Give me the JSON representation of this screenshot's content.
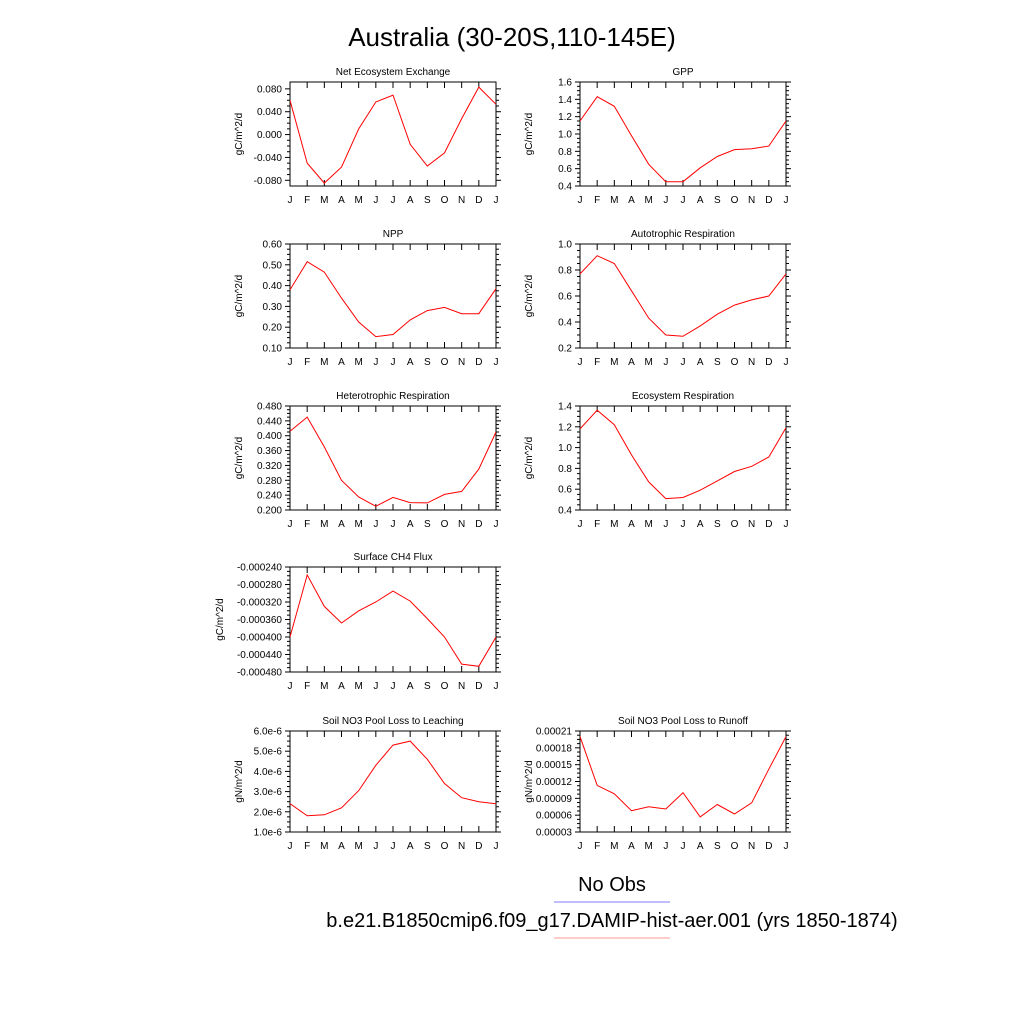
{
  "page": {
    "title": "Australia (30-20S,110-145E)",
    "legend": [
      {
        "label": "No Obs",
        "color": "#7b7bff"
      },
      {
        "label": "b.e21.B1850cmip6.f09_g17.DAMIP-hist-aer.001 (yrs 1850-1874)",
        "color": "#ff9999"
      }
    ],
    "line_color": "#ff0000"
  },
  "chart_data": [
    {
      "type": "line",
      "title": "Net Ecosystem Exchange",
      "ylabel": "gC/m^2/d",
      "x": [
        "J",
        "F",
        "M",
        "A",
        "M",
        "J",
        "J",
        "A",
        "S",
        "O",
        "N",
        "D",
        "J"
      ],
      "ylim": [
        -0.09,
        0.092
      ],
      "yticks": [
        -0.08,
        -0.04,
        0.0,
        0.04,
        0.08
      ],
      "ytick_labels": [
        "-0.080",
        "-0.040",
        "0.000",
        "0.040",
        "0.080"
      ],
      "series": [
        {
          "values": [
            0.06,
            -0.05,
            -0.085,
            -0.057,
            0.01,
            0.057,
            0.069,
            -0.017,
            -0.055,
            -0.032,
            0.028,
            0.083,
            0.053
          ]
        }
      ]
    },
    {
      "type": "line",
      "title": "GPP",
      "ylabel": "gC/m^2/d",
      "x": [
        "J",
        "F",
        "M",
        "A",
        "M",
        "J",
        "J",
        "A",
        "S",
        "O",
        "N",
        "D",
        "J"
      ],
      "ylim": [
        0.4,
        1.6
      ],
      "yticks": [
        0.4,
        0.6,
        0.8,
        1.0,
        1.2,
        1.4,
        1.6
      ],
      "ytick_labels": [
        "0.4",
        "0.6",
        "0.8",
        "1.0",
        "1.2",
        "1.4",
        "1.6"
      ],
      "series": [
        {
          "values": [
            1.15,
            1.43,
            1.32,
            0.98,
            0.65,
            0.45,
            0.45,
            0.61,
            0.74,
            0.82,
            0.83,
            0.86,
            1.15
          ]
        }
      ]
    },
    {
      "type": "line",
      "title": "NPP",
      "ylabel": "gC/m^2/d",
      "x": [
        "J",
        "F",
        "M",
        "A",
        "M",
        "J",
        "J",
        "A",
        "S",
        "O",
        "N",
        "D",
        "J"
      ],
      "ylim": [
        0.1,
        0.6
      ],
      "yticks": [
        0.1,
        0.2,
        0.3,
        0.4,
        0.5,
        0.6
      ],
      "ytick_labels": [
        "0.10",
        "0.20",
        "0.30",
        "0.40",
        "0.50",
        "0.60"
      ],
      "series": [
        {
          "values": [
            0.38,
            0.515,
            0.465,
            0.34,
            0.225,
            0.155,
            0.165,
            0.235,
            0.28,
            0.295,
            0.265,
            0.265,
            0.385
          ]
        }
      ]
    },
    {
      "type": "line",
      "title": "Autotrophic Respiration",
      "ylabel": "gC/m^2/d",
      "x": [
        "J",
        "F",
        "M",
        "A",
        "M",
        "J",
        "J",
        "A",
        "S",
        "O",
        "N",
        "D",
        "J"
      ],
      "ylim": [
        0.2,
        1.0
      ],
      "yticks": [
        0.2,
        0.4,
        0.6,
        0.8,
        1.0
      ],
      "ytick_labels": [
        "0.2",
        "0.4",
        "0.6",
        "0.8",
        "1.0"
      ],
      "series": [
        {
          "values": [
            0.77,
            0.91,
            0.85,
            0.64,
            0.43,
            0.3,
            0.29,
            0.37,
            0.46,
            0.53,
            0.57,
            0.6,
            0.77
          ]
        }
      ]
    },
    {
      "type": "line",
      "title": "Heterotrophic Respiration",
      "ylabel": "gC/m^2/d",
      "x": [
        "J",
        "F",
        "M",
        "A",
        "M",
        "J",
        "J",
        "A",
        "S",
        "O",
        "N",
        "D",
        "J"
      ],
      "ylim": [
        0.2,
        0.48
      ],
      "yticks": [
        0.2,
        0.24,
        0.28,
        0.32,
        0.36,
        0.4,
        0.44,
        0.48
      ],
      "ytick_labels": [
        "0.200",
        "0.240",
        "0.280",
        "0.320",
        "0.360",
        "0.400",
        "0.440",
        "0.480"
      ],
      "series": [
        {
          "values": [
            0.412,
            0.45,
            0.37,
            0.28,
            0.235,
            0.21,
            0.234,
            0.22,
            0.219,
            0.242,
            0.25,
            0.31,
            0.41
          ]
        }
      ]
    },
    {
      "type": "line",
      "title": "Ecosystem Respiration",
      "ylabel": "gC/m^2/d",
      "x": [
        "J",
        "F",
        "M",
        "A",
        "M",
        "J",
        "J",
        "A",
        "S",
        "O",
        "N",
        "D",
        "J"
      ],
      "ylim": [
        0.4,
        1.4
      ],
      "yticks": [
        0.4,
        0.6,
        0.8,
        1.0,
        1.2,
        1.4
      ],
      "ytick_labels": [
        "0.4",
        "0.6",
        "0.8",
        "1.0",
        "1.2",
        "1.4"
      ],
      "series": [
        {
          "values": [
            1.18,
            1.36,
            1.22,
            0.93,
            0.67,
            0.51,
            0.52,
            0.59,
            0.68,
            0.77,
            0.82,
            0.91,
            1.19
          ]
        }
      ]
    },
    {
      "type": "line",
      "title": "Surface CH4 Flux",
      "ylabel": "gC/m^2/d",
      "x": [
        "J",
        "F",
        "M",
        "A",
        "M",
        "J",
        "J",
        "A",
        "S",
        "O",
        "N",
        "D",
        "J"
      ],
      "ylim": [
        -0.00048,
        -0.00024
      ],
      "yticks": [
        -0.00048,
        -0.00044,
        -0.0004,
        -0.00036,
        -0.00032,
        -0.00028,
        -0.00024
      ],
      "ytick_labels": [
        "-0.000480",
        "-0.000440",
        "-0.000400",
        "-0.000360",
        "-0.000320",
        "-0.000280",
        "-0.000240"
      ],
      "series": [
        {
          "values": [
            -0.0004,
            -0.000258,
            -0.00033,
            -0.000368,
            -0.00034,
            -0.00032,
            -0.000295,
            -0.000318,
            -0.000358,
            -0.0004,
            -0.000462,
            -0.000467,
            -0.0004
          ]
        }
      ]
    },
    {
      "type": "line",
      "title": "Soil NO3 Pool Loss to Leaching",
      "ylabel": "gN/m^2/d",
      "x": [
        "J",
        "F",
        "M",
        "A",
        "M",
        "J",
        "J",
        "A",
        "S",
        "O",
        "N",
        "D",
        "J"
      ],
      "ylim": [
        1e-06,
        6e-06
      ],
      "yticks": [
        1e-06,
        2e-06,
        3e-06,
        4e-06,
        5e-06,
        6e-06
      ],
      "ytick_labels": [
        "1.0e-6",
        "2.0e-6",
        "3.0e-6",
        "4.0e-6",
        "5.0e-6",
        "6.0e-6"
      ],
      "series": [
        {
          "values": [
            2.4e-06,
            1.8e-06,
            1.85e-06,
            2.2e-06,
            3.05e-06,
            4.3e-06,
            5.3e-06,
            5.5e-06,
            4.6e-06,
            3.4e-06,
            2.7e-06,
            2.5e-06,
            2.4e-06
          ]
        }
      ]
    },
    {
      "type": "line",
      "title": "Soil NO3 Pool Loss to Runoff",
      "ylabel": "gN/m^2/d",
      "x": [
        "J",
        "F",
        "M",
        "A",
        "M",
        "J",
        "J",
        "A",
        "S",
        "O",
        "N",
        "D",
        "J"
      ],
      "ylim": [
        3e-05,
        0.00021
      ],
      "yticks": [
        3e-05,
        6e-05,
        9e-05,
        0.00012,
        0.00015,
        0.00018,
        0.00021
      ],
      "ytick_labels": [
        "0.00003",
        "0.00006",
        "0.00009",
        "0.00012",
        "0.00015",
        "0.00018",
        "0.00021"
      ],
      "series": [
        {
          "values": [
            0.0002,
            0.000113,
            9.8e-05,
            6.8e-05,
            7.5e-05,
            7.1e-05,
            0.0001,
            5.7e-05,
            7.9e-05,
            6.2e-05,
            8.2e-05,
            0.000142,
            0.0002
          ]
        }
      ]
    }
  ]
}
